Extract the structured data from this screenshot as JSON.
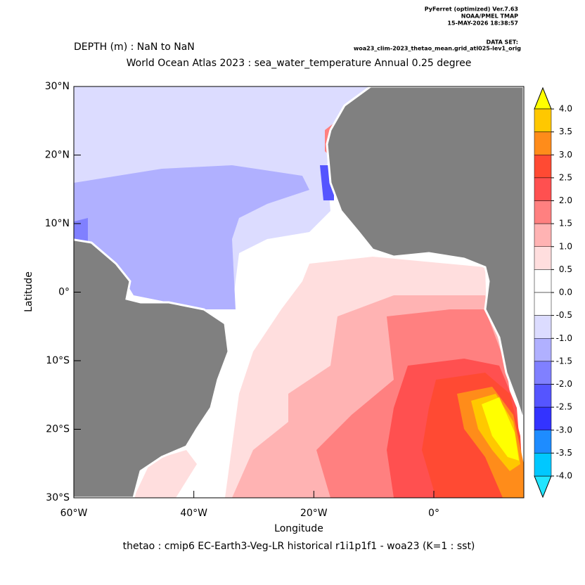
{
  "chart_data": {
    "type": "map",
    "header": [
      "PyFerret (optimized) Ver.7.63",
      "NOAA/PMEL TMAP",
      "15-MAY-2026 18:38:57"
    ],
    "dataset_label": "DATA SET:",
    "dataset": "woa23_clim-2023_thetao_mean.grid_atl025-lev1_orig",
    "depth": "DEPTH (m) : NaN to NaN",
    "title": "World Ocean Atlas 2023 : sea_water_temperature Annual  0.25 degree",
    "xlabel": "Longitude",
    "ylabel": "Latitude",
    "footer": "thetao : cmip6 EC-Earth3-Veg-LR historical r1i1p1f1 - woa23  (K=1 : sst)",
    "xlim": [
      -60,
      15
    ],
    "ylim": [
      -30,
      30
    ],
    "xticks": [
      {
        "value": -60,
        "label": "60°W"
      },
      {
        "value": -40,
        "label": "40°W"
      },
      {
        "value": -20,
        "label": "20°W"
      },
      {
        "value": 0,
        "label": "0°"
      }
    ],
    "yticks": [
      {
        "value": 30,
        "label": "30°N"
      },
      {
        "value": 20,
        "label": "20°N"
      },
      {
        "value": 10,
        "label": "10°N"
      },
      {
        "value": 0,
        "label": "0°"
      },
      {
        "value": -10,
        "label": "10°S"
      },
      {
        "value": -20,
        "label": "20°S"
      },
      {
        "value": -30,
        "label": "30°S"
      }
    ],
    "colorbar": {
      "levels": [
        {
          "value": 4,
          "label": "4.0"
        },
        3.5,
        {
          "value": 3,
          "label": "3.0"
        },
        2.5,
        {
          "value": 2,
          "label": "2.0"
        },
        1.5,
        {
          "value": 1,
          "label": "1.0"
        },
        0.5,
        {
          "value": 0,
          "label": "0.0"
        },
        -0.5,
        {
          "value": -1,
          "label": "-1.0"
        },
        -1.5,
        {
          "value": -2,
          "label": "-2.0"
        },
        -2.5,
        {
          "value": -3,
          "label": "-3.0"
        },
        -3.5,
        {
          "value": -4,
          "label": "-4.0"
        }
      ],
      "over_color": "#ffff00",
      "under_color": "#22e5ff",
      "colors": [
        "#ffc800",
        "#ff8c1a",
        "#ff4a33",
        "#ff5050",
        "#ff8080",
        "#ffb3b3",
        "#ffdede",
        "#ffffff",
        "#ffffff",
        "#dcdcff",
        "#b0b0ff",
        "#8080ff",
        "#5555ff",
        "#3333ff",
        "#1e8cff",
        "#00c8ff"
      ]
    }
  }
}
